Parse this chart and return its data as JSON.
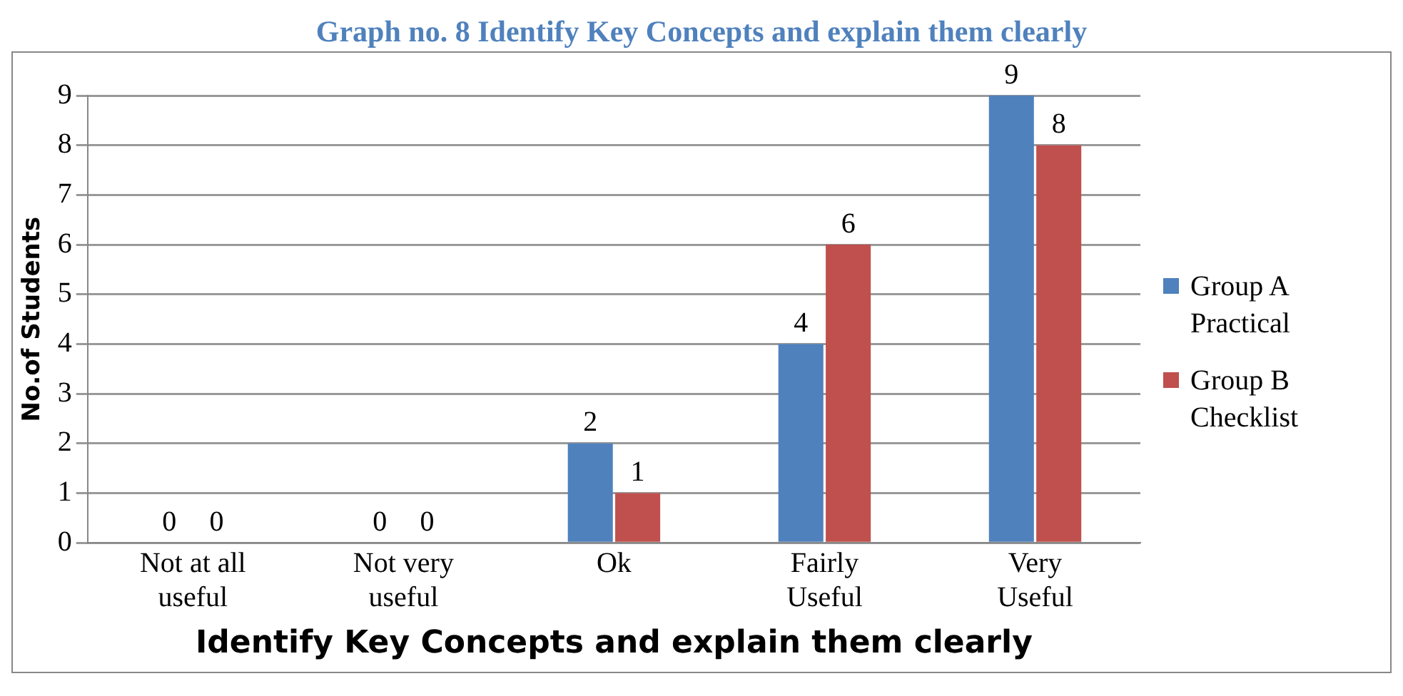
{
  "chart_data": {
    "type": "bar",
    "title": "Graph no. 8 Identify Key Concepts and explain them clearly",
    "xlabel": "Identify Key Concepts and explain them clearly",
    "ylabel": "No.of Students",
    "categories": [
      "Not at all useful",
      "Not very useful",
      "Ok",
      "Fairly Useful",
      "Very Useful"
    ],
    "series": [
      {
        "name": "Group A Practical",
        "color": "#4f81bd",
        "values": [
          0,
          0,
          2,
          4,
          9
        ]
      },
      {
        "name": "Group B Checklist",
        "color": "#c0504d",
        "values": [
          0,
          0,
          1,
          6,
          8
        ]
      }
    ],
    "ylim": [
      0,
      9
    ],
    "yticks": [
      0,
      1,
      2,
      3,
      4,
      5,
      6,
      7,
      8,
      9
    ],
    "grid": "y",
    "legend": "right",
    "data_labels": true
  }
}
